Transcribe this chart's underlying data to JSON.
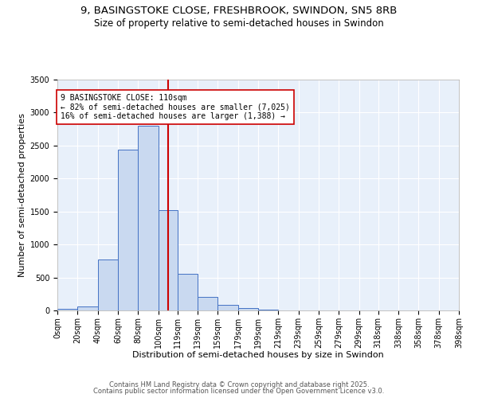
{
  "title_line1": "9, BASINGSTOKE CLOSE, FRESHBROOK, SWINDON, SN5 8RB",
  "title_line2": "Size of property relative to semi-detached houses in Swindon",
  "xlabel": "Distribution of semi-detached houses by size in Swindon",
  "ylabel": "Number of semi-detached properties",
  "bin_edges": [
    0,
    20,
    40,
    60,
    80,
    100,
    119,
    139,
    159,
    179,
    199,
    219,
    239,
    259,
    279,
    299,
    318,
    338,
    358,
    378,
    398
  ],
  "bar_heights": [
    25,
    60,
    775,
    2440,
    2800,
    1525,
    550,
    200,
    90,
    35,
    15,
    5,
    3,
    1,
    1,
    0,
    0,
    0,
    0,
    0
  ],
  "bar_facecolor": "#c9d9f0",
  "bar_edgecolor": "#4472c4",
  "property_size": 110,
  "red_line_color": "#cc0000",
  "annotation_text": "9 BASINGSTOKE CLOSE: 110sqm\n← 82% of semi-detached houses are smaller (7,025)\n16% of semi-detached houses are larger (1,388) →",
  "annotation_box_edgecolor": "#cc0000",
  "annotation_box_facecolor": "#ffffff",
  "ylim": [
    0,
    3500
  ],
  "yticks": [
    0,
    500,
    1000,
    1500,
    2000,
    2500,
    3000,
    3500
  ],
  "tick_labels": [
    "0sqm",
    "20sqm",
    "40sqm",
    "60sqm",
    "80sqm",
    "100sqm",
    "119sqm",
    "139sqm",
    "159sqm",
    "179sqm",
    "199sqm",
    "219sqm",
    "239sqm",
    "259sqm",
    "279sqm",
    "299sqm",
    "318sqm",
    "338sqm",
    "358sqm",
    "378sqm",
    "398sqm"
  ],
  "background_color": "#e8f0fa",
  "grid_color": "#ffffff",
  "footer_line1": "Contains HM Land Registry data © Crown copyright and database right 2025.",
  "footer_line2": "Contains public sector information licensed under the Open Government Licence v3.0.",
  "title_fontsize": 9.5,
  "subtitle_fontsize": 8.5,
  "axis_label_fontsize": 8,
  "tick_fontsize": 7,
  "footer_fontsize": 6,
  "annotation_fontsize": 7
}
